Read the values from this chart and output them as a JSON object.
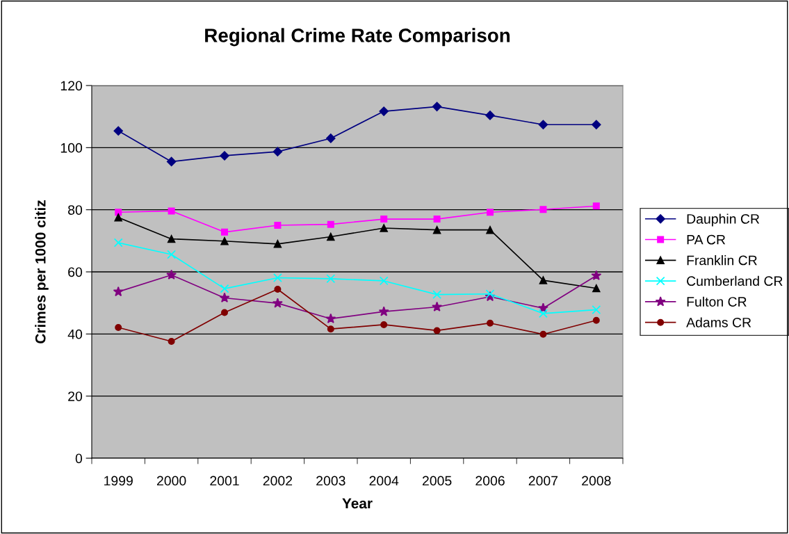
{
  "chart_data": {
    "type": "line",
    "title": "Regional Crime Rate Comparison",
    "xlabel": "Year",
    "ylabel": "Crimes per 1000 citiz",
    "categories": [
      "1999",
      "2000",
      "2001",
      "2002",
      "2003",
      "2004",
      "2005",
      "2006",
      "2007",
      "2008"
    ],
    "ylim": [
      0,
      120
    ],
    "yticks": [
      0,
      20,
      40,
      60,
      80,
      100,
      120
    ],
    "grid": "y",
    "legend": "right",
    "series": [
      {
        "name": "Dauphin CR",
        "color": "#000080",
        "marker": "diamond",
        "values": [
          105.4,
          95.5,
          97.4,
          98.7,
          103.0,
          111.7,
          113.2,
          110.4,
          107.4,
          107.4
        ]
      },
      {
        "name": "PA CR",
        "color": "#ff00ff",
        "marker": "square",
        "values": [
          79.2,
          79.6,
          72.8,
          75.0,
          75.3,
          77.0,
          77.0,
          79.2,
          80.1,
          81.2
        ]
      },
      {
        "name": "Franklin CR",
        "color": "#000000",
        "marker": "triangle",
        "values": [
          77.5,
          70.6,
          69.9,
          69.0,
          71.3,
          74.1,
          73.5,
          73.5,
          57.3,
          54.7
        ]
      },
      {
        "name": "Cumberland CR",
        "color": "#00ffff",
        "marker": "cross",
        "values": [
          69.4,
          65.6,
          54.6,
          58.1,
          57.8,
          57.1,
          52.7,
          52.9,
          46.6,
          47.8
        ]
      },
      {
        "name": "Fulton CR",
        "color": "#800080",
        "marker": "star",
        "values": [
          53.6,
          59.0,
          51.6,
          49.9,
          44.9,
          47.2,
          48.7,
          52.0,
          48.3,
          58.8
        ]
      },
      {
        "name": "Adams CR",
        "color": "#800000",
        "marker": "circle",
        "values": [
          42.1,
          37.6,
          46.9,
          54.4,
          41.6,
          43.0,
          41.1,
          43.5,
          39.9,
          44.4
        ]
      }
    ]
  }
}
